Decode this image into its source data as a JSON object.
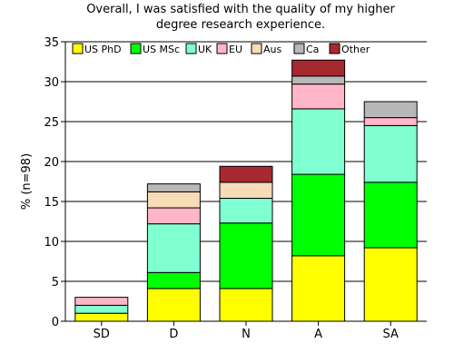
{
  "chart_data": {
    "type": "bar",
    "stacked": true,
    "title_lines": [
      "Overall, I was satisfied with the quality of my higher",
      "degree research experience."
    ],
    "xlabel": "",
    "ylabel": "% (n=98)",
    "ylim": [
      0,
      35
    ],
    "yticks": [
      0,
      5,
      10,
      15,
      20,
      25,
      30,
      35
    ],
    "grid": true,
    "legend_position": "top",
    "categories": [
      "SD",
      "D",
      "N",
      "A",
      "SA"
    ],
    "series": [
      {
        "name": "US PhD",
        "color": "#ffff00",
        "values": [
          1.0,
          4.1,
          4.1,
          8.2,
          9.2
        ]
      },
      {
        "name": "US MSc",
        "color": "#00ff00",
        "values": [
          0,
          2.0,
          8.2,
          10.2,
          8.2
        ]
      },
      {
        "name": "UK",
        "color": "#80ffd0",
        "values": [
          1.0,
          6.1,
          3.1,
          8.2,
          7.1
        ]
      },
      {
        "name": "EU",
        "color": "#ffb6c8",
        "values": [
          1.0,
          2.0,
          0,
          3.1,
          1.0
        ]
      },
      {
        "name": "Aus",
        "color": "#f8dcb8",
        "values": [
          0,
          2.0,
          2.0,
          0,
          0
        ]
      },
      {
        "name": "Ca",
        "color": "#b8b8b8",
        "values": [
          0,
          1.0,
          0,
          1.0,
          2.0
        ]
      },
      {
        "name": "Other",
        "color": "#a82830",
        "values": [
          0,
          0,
          2.0,
          2.0,
          0
        ]
      }
    ]
  }
}
